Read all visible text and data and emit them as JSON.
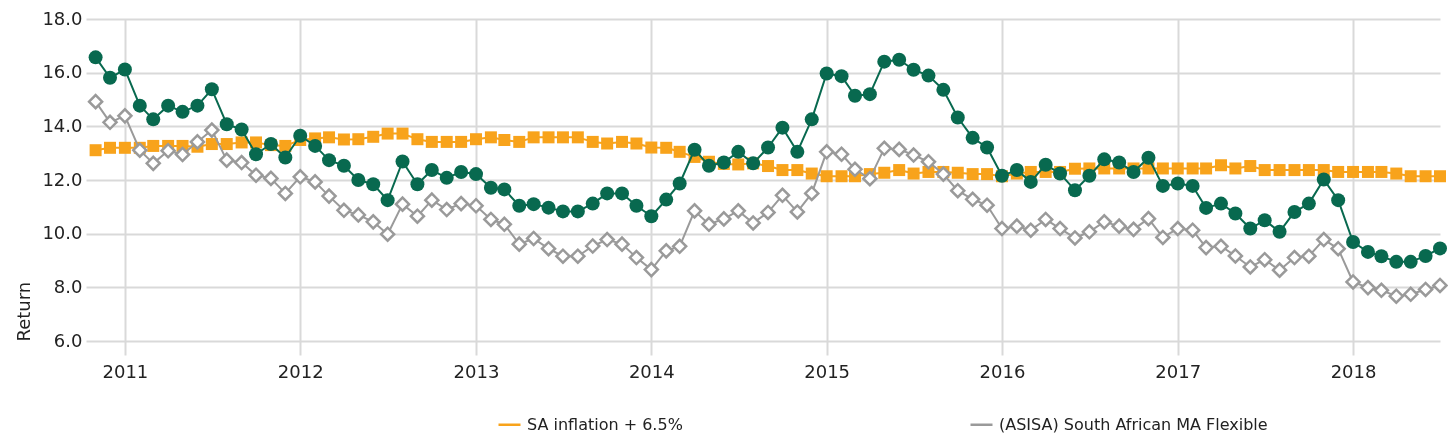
{
  "chart_data": {
    "type": "line",
    "ylabel": "Return",
    "x": [
      "2010-11",
      "2010-12",
      "2011-01",
      "2011-02",
      "2011-03",
      "2011-04",
      "2011-05",
      "2011-06",
      "2011-07",
      "2011-08",
      "2011-09",
      "2011-10",
      "2011-11",
      "2011-12",
      "2012-01",
      "2012-02",
      "2012-03",
      "2012-04",
      "2012-05",
      "2012-06",
      "2012-07",
      "2012-08",
      "2012-09",
      "2012-10",
      "2012-11",
      "2012-12",
      "2013-01",
      "2013-02",
      "2013-03",
      "2013-04",
      "2013-05",
      "2013-06",
      "2013-07",
      "2013-08",
      "2013-09",
      "2013-10",
      "2013-11",
      "2013-12",
      "2014-01",
      "2014-02",
      "2014-03",
      "2014-04",
      "2014-05",
      "2014-06",
      "2014-07",
      "2014-08",
      "2014-09",
      "2014-10",
      "2014-11",
      "2014-12",
      "2015-01",
      "2015-02",
      "2015-03",
      "2015-04",
      "2015-05",
      "2015-06",
      "2015-07",
      "2015-08",
      "2015-09",
      "2015-10",
      "2015-11",
      "2015-12",
      "2016-01",
      "2016-02",
      "2016-03",
      "2016-04",
      "2016-05",
      "2016-06",
      "2016-07",
      "2016-08",
      "2016-09",
      "2016-10",
      "2016-11",
      "2016-12",
      "2017-01",
      "2017-02",
      "2017-03",
      "2017-04",
      "2017-05",
      "2017-06",
      "2017-07",
      "2017-08",
      "2017-09",
      "2017-10",
      "2017-11",
      "2017-12",
      "2018-01",
      "2018-02",
      "2018-03",
      "2018-04",
      "2018-05",
      "2018-06",
      "2018-07"
    ],
    "xlim": [
      "2010-10-12",
      "2018-07-01"
    ],
    "xticks": [
      "2011",
      "2012",
      "2013",
      "2014",
      "2015",
      "2016",
      "2017",
      "2018"
    ],
    "ylim": [
      6,
      18
    ],
    "yticks": [
      {
        "value": 6,
        "label": "6.0"
      },
      {
        "value": 8,
        "label": "8.0"
      },
      {
        "value": 10,
        "label": "10.0"
      },
      {
        "value": 12,
        "label": "12.0"
      },
      {
        "value": 14,
        "label": "14.0"
      },
      {
        "value": 16,
        "label": "16.0"
      },
      {
        "value": 18,
        "label": "18.0"
      }
    ],
    "grid": true,
    "legend": "bottom",
    "line_style": "solid",
    "series": [
      {
        "color": "#08694f",
        "marker": "circle",
        "values": [
          16.57,
          15.81,
          16.12,
          14.77,
          14.26,
          14.77,
          14.54,
          14.77,
          15.38,
          14.08,
          13.88,
          12.96,
          13.34,
          12.84,
          13.65,
          13.27,
          12.74,
          12.53,
          12.0,
          11.84,
          11.25,
          12.69,
          11.84,
          12.37,
          12.08,
          12.3,
          12.22,
          11.71,
          11.65,
          11.04,
          11.1,
          10.97,
          10.83,
          10.83,
          11.12,
          11.5,
          11.5,
          11.04,
          10.65,
          11.27,
          11.87,
          13.13,
          12.53,
          12.65,
          13.05,
          12.62,
          13.21,
          13.95,
          13.05,
          14.26,
          15.97,
          15.87,
          15.14,
          15.2,
          16.41,
          16.48,
          16.11,
          15.89,
          15.36,
          14.33,
          13.57,
          13.21,
          12.16,
          12.37,
          11.93,
          12.57,
          12.24,
          11.62,
          12.16,
          12.77,
          12.65,
          12.3,
          12.83,
          11.78,
          11.87,
          11.78,
          10.96,
          11.12,
          10.75,
          10.19,
          10.5,
          10.07,
          10.81,
          11.12,
          12.02,
          11.25,
          9.69,
          9.32,
          9.16,
          8.95,
          8.95,
          9.17,
          9.45
        ]
      },
      {
        "name": "SA inflation + 6.5%",
        "color": "#f8a31b",
        "marker": "square",
        "values": [
          13.11,
          13.2,
          13.2,
          13.2,
          13.27,
          13.27,
          13.27,
          13.24,
          13.34,
          13.34,
          13.4,
          13.4,
          13.3,
          13.27,
          13.49,
          13.55,
          13.59,
          13.51,
          13.52,
          13.61,
          13.73,
          13.73,
          13.52,
          13.42,
          13.42,
          13.42,
          13.52,
          13.59,
          13.49,
          13.42,
          13.59,
          13.59,
          13.59,
          13.59,
          13.42,
          13.36,
          13.42,
          13.36,
          13.21,
          13.2,
          13.05,
          12.86,
          12.68,
          12.6,
          12.58,
          12.62,
          12.52,
          12.37,
          12.37,
          12.24,
          12.14,
          12.14,
          12.14,
          12.22,
          12.27,
          12.37,
          12.24,
          12.3,
          12.3,
          12.27,
          12.22,
          12.22,
          12.14,
          12.24,
          12.3,
          12.3,
          12.3,
          12.42,
          12.43,
          12.43,
          12.43,
          12.43,
          12.43,
          12.43,
          12.43,
          12.43,
          12.43,
          12.55,
          12.43,
          12.52,
          12.37,
          12.37,
          12.37,
          12.37,
          12.37,
          12.3,
          12.3,
          12.3,
          12.3,
          12.24,
          12.14,
          12.14,
          12.14
        ]
      },
      {
        "name": "(ASISA) South African MA Flexible",
        "color": "#9a9a9a",
        "marker": "diamond",
        "values": [
          14.92,
          14.15,
          14.39,
          13.11,
          12.62,
          13.09,
          12.95,
          13.42,
          13.86,
          12.74,
          12.65,
          12.18,
          12.06,
          11.5,
          12.12,
          11.93,
          11.4,
          10.87,
          10.7,
          10.44,
          9.98,
          11.1,
          10.65,
          11.25,
          10.9,
          11.12,
          11.04,
          10.53,
          10.35,
          9.61,
          9.82,
          9.44,
          9.16,
          9.16,
          9.54,
          9.78,
          9.61,
          9.11,
          8.66,
          9.36,
          9.53,
          10.85,
          10.35,
          10.55,
          10.85,
          10.4,
          10.79,
          11.43,
          10.81,
          11.5,
          13.05,
          12.96,
          12.4,
          12.05,
          13.18,
          13.14,
          12.93,
          12.68,
          12.22,
          11.6,
          11.28,
          11.06,
          10.19,
          10.28,
          10.13,
          10.53,
          10.19,
          9.84,
          10.07,
          10.44,
          10.28,
          10.16,
          10.56,
          9.86,
          10.19,
          10.13,
          9.48,
          9.53,
          9.17,
          8.76,
          9.03,
          8.64,
          9.11,
          9.16,
          9.78,
          9.44,
          8.2,
          7.99,
          7.89,
          7.67,
          7.74,
          7.92,
          8.07
        ]
      }
    ]
  }
}
